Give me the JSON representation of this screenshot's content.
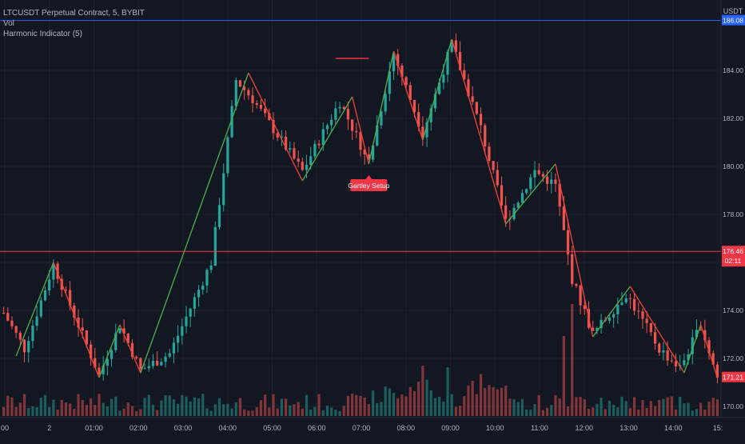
{
  "legend": {
    "symbol_line": "LTCUSDT Perpetual Contract, 5, BYBIT",
    "vol_label": "Vol",
    "indicator_label": "Harmonic Indicator (5)"
  },
  "price_axis": {
    "currency": "USDT",
    "ticks": [
      170.0,
      172.0,
      174.0,
      176.0,
      178.0,
      180.0,
      182.0,
      184.0
    ],
    "tick_labels": [
      "170.00",
      "172.00",
      "174.00",
      "176.00",
      "178.00",
      "180.00",
      "182.00",
      "184.00"
    ],
    "range": [
      169.6,
      186.8
    ],
    "badges": [
      {
        "label": "186.08",
        "value": 186.08,
        "color": "#2962ff"
      },
      {
        "label": "176.46",
        "sublabel": "02:11",
        "value": 176.46,
        "color": "#f23645"
      },
      {
        "label": "171.21",
        "value": 171.21,
        "color": "#f23645"
      }
    ],
    "horizontal_lines": [
      {
        "value": 186.08,
        "color": "#2962ff"
      },
      {
        "value": 176.46,
        "color": "#f23645"
      }
    ]
  },
  "time_axis": {
    "labels": [
      "00",
      "2",
      "01:00",
      "02:00",
      "03:00",
      "04:00",
      "05:00",
      "06:00",
      "07:00",
      "08:00",
      "09:00",
      "10:00",
      "11:00",
      "12:00",
      "13:00",
      "14:00",
      "15:"
    ]
  },
  "annotation": {
    "label": "Gartley Setup",
    "color": "#f23645",
    "level_line_value": 184.5
  },
  "colors": {
    "background": "#131722",
    "grid": "#1e222d",
    "up": "#26a69a",
    "down": "#ef5350",
    "zigzag_green": "#4caf50",
    "zigzag_red": "#f44336",
    "vol_up": "#26a69a",
    "vol_down": "#ef5350"
  },
  "chart_data": {
    "type": "candlestick",
    "title": "LTCUSDT Perpetual Contract, 5, BYBIT",
    "ylabel": "USDT",
    "ylim": [
      169.6,
      186.8
    ],
    "anchors": [
      {
        "i": 0,
        "p": 173.9
      },
      {
        "i": 5,
        "p": 172.4
      },
      {
        "i": 12,
        "p": 175.9
      },
      {
        "i": 23,
        "p": 171.3
      },
      {
        "i": 28,
        "p": 173.4
      },
      {
        "i": 33,
        "p": 171.5
      },
      {
        "i": 40,
        "p": 172.2
      },
      {
        "i": 50,
        "p": 176.0
      },
      {
        "i": 56,
        "p": 183.6
      },
      {
        "i": 60,
        "p": 182.8
      },
      {
        "i": 72,
        "p": 179.8
      },
      {
        "i": 81,
        "p": 182.7
      },
      {
        "i": 88,
        "p": 180.2
      },
      {
        "i": 94,
        "p": 184.7
      },
      {
        "i": 101,
        "p": 181.4
      },
      {
        "i": 108,
        "p": 185.1
      },
      {
        "i": 115,
        "p": 181.6
      },
      {
        "i": 121,
        "p": 177.7
      },
      {
        "i": 128,
        "p": 179.8
      },
      {
        "i": 133,
        "p": 179.2
      },
      {
        "i": 137,
        "p": 175.3
      },
      {
        "i": 142,
        "p": 173.0
      },
      {
        "i": 150,
        "p": 174.7
      },
      {
        "i": 158,
        "p": 172.4
      },
      {
        "i": 163,
        "p": 171.6
      },
      {
        "i": 168,
        "p": 173.4
      },
      {
        "i": 172,
        "p": 171.2
      }
    ],
    "zigzag": [
      {
        "i": 3,
        "p": 172.1,
        "c": "r"
      },
      {
        "i": 12,
        "p": 176.0,
        "c": "g"
      },
      {
        "i": 23,
        "p": 171.2,
        "c": "r"
      },
      {
        "i": 28,
        "p": 173.4,
        "c": "g"
      },
      {
        "i": 33,
        "p": 171.4,
        "c": "r"
      },
      {
        "i": 59,
        "p": 183.9,
        "c": "g"
      },
      {
        "i": 72,
        "p": 179.4,
        "c": "r"
      },
      {
        "i": 84,
        "p": 182.9,
        "c": "g"
      },
      {
        "i": 88,
        "p": 180.1,
        "c": "r"
      },
      {
        "i": 94,
        "p": 184.8,
        "c": "g"
      },
      {
        "i": 101,
        "p": 181.1,
        "c": "r"
      },
      {
        "i": 108,
        "p": 185.3,
        "c": "g"
      },
      {
        "i": 121,
        "p": 177.6,
        "c": "r"
      },
      {
        "i": 133,
        "p": 180.1,
        "c": "g"
      },
      {
        "i": 142,
        "p": 172.9,
        "c": "r"
      },
      {
        "i": 151,
        "p": 175.0,
        "c": "g"
      },
      {
        "i": 164,
        "p": 171.4,
        "c": "r"
      },
      {
        "i": 168,
        "p": 173.4,
        "c": "g"
      },
      {
        "i": 172,
        "p": 171.2,
        "c": "r"
      }
    ],
    "bar_count": 173
  }
}
